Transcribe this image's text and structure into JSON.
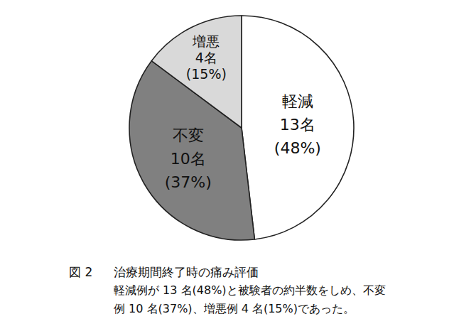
{
  "chart_data": {
    "type": "pie",
    "figure_label": "図 2",
    "title": "治療期間終了時の痛み評価",
    "caption": [
      "軽減例が 13 名(48%)と被験者の約半数をしめ、不変",
      "例 10 名(37%)、増悪例 4 名(15%)であった。"
    ],
    "categories": [
      "軽減",
      "不変",
      "増悪"
    ],
    "values": [
      13,
      10,
      4
    ],
    "value_labels": [
      "13名",
      "10名",
      "4名"
    ],
    "percents": [
      48,
      37,
      15
    ],
    "percent_labels": [
      "(48%)",
      "(37%)",
      "(15%)"
    ],
    "colors": [
      "#ffffff",
      "#808080",
      "#d9d9d9"
    ],
    "data_labels": true
  }
}
